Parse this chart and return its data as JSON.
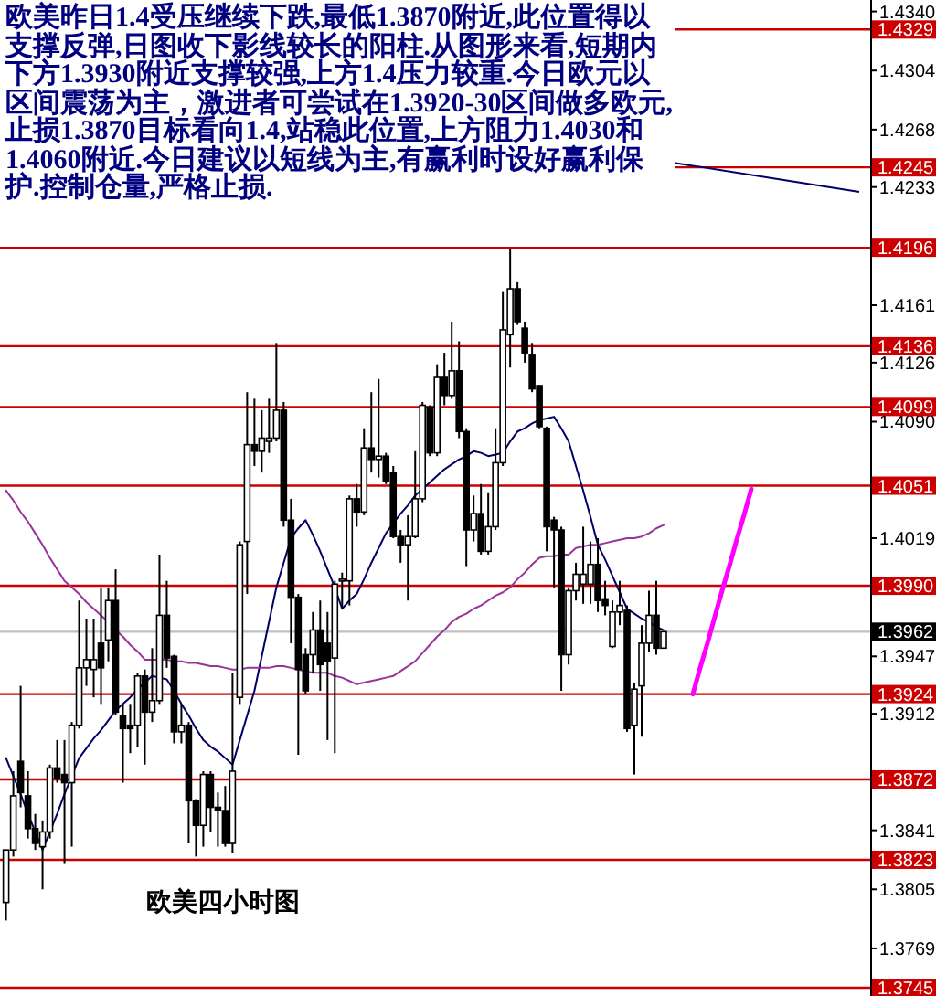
{
  "chart_data": {
    "type": "candlestick",
    "title": "欧美四小时图",
    "annotations": [
      "欧美昨日1.4受压继续下跌,最低1.3870附近,此位置得以支撑反弹,日图收下影线较长的阳柱.从图形来看,短期内下方1.3930附近支撑较强,上方1.4压力较重.今日欧元以区间震荡为主，激进者可尝试在1.3920-30区间做多欧元,止损1.3870目标看向1.4,站稳此位置,上方阻力1.4030和1.4060附近.今日建议以短线为主,有赢利时设好赢利保护.控制仓量,严格止损."
    ],
    "categories": [
      null,
      null,
      null,
      null,
      null,
      null,
      null,
      null,
      null,
      null,
      null,
      null,
      null,
      null,
      null,
      null,
      null,
      null,
      null,
      null,
      null,
      null,
      null,
      null,
      null,
      null,
      null,
      null,
      null,
      null,
      null,
      null,
      null,
      null,
      null,
      null,
      null,
      null,
      null,
      null,
      null,
      null,
      null,
      null,
      null,
      null,
      null,
      null,
      null,
      null,
      null,
      null,
      null,
      null,
      null,
      null,
      null,
      null,
      null,
      null,
      null,
      null,
      null,
      null,
      null,
      null,
      null,
      null,
      null,
      null,
      null,
      null,
      null,
      null,
      null,
      null,
      null,
      null,
      null,
      null,
      null,
      null,
      null,
      null,
      null,
      null,
      null,
      null,
      null,
      null,
      null,
      null,
      null,
      null,
      null,
      null,
      null,
      null,
      null,
      null,
      null,
      null,
      null,
      null,
      null,
      null,
      null,
      null,
      null,
      null,
      null,
      null,
      null,
      null,
      null,
      null,
      null,
      null,
      null
    ],
    "ohlc": [
      [
        1.3797,
        1.3829,
        1.3786,
        1.3829
      ],
      [
        1.3829,
        1.3877,
        1.3825,
        1.3862
      ],
      [
        1.3883,
        1.3929,
        1.3855,
        1.3864
      ],
      [
        1.3862,
        1.3877,
        1.3836,
        1.3842
      ],
      [
        1.3842,
        1.3851,
        1.3829,
        1.3833
      ],
      [
        1.3831,
        1.3847,
        1.3805,
        1.384
      ],
      [
        1.384,
        1.3881,
        1.3836,
        1.3879
      ],
      [
        1.3879,
        1.3896,
        1.387,
        1.3873
      ],
      [
        1.3875,
        1.3896,
        1.3821,
        1.387
      ],
      [
        1.387,
        1.3907,
        1.3831,
        1.3905
      ],
      [
        1.3905,
        1.3981,
        1.3903,
        1.394
      ],
      [
        1.394,
        1.397,
        1.3929,
        1.3945
      ],
      [
        1.3939,
        1.397,
        1.3922,
        1.3945
      ],
      [
        1.3955,
        1.3989,
        1.3918,
        1.394
      ],
      [
        1.3957,
        1.3989,
        1.3944,
        1.3981
      ],
      [
        1.3981,
        1.4,
        1.3911,
        1.3913
      ],
      [
        1.3911,
        1.3918,
        1.387,
        1.3903
      ],
      [
        1.3905,
        1.3918,
        1.3888,
        1.3903
      ],
      [
        1.3905,
        1.3937,
        1.3892,
        1.3935
      ],
      [
        1.3935,
        1.3939,
        1.3881,
        1.3913
      ],
      [
        1.3913,
        1.3952,
        1.3907,
        1.392
      ],
      [
        1.392,
        1.4009,
        1.3918,
        1.3972
      ],
      [
        1.3972,
        1.3993,
        1.394,
        1.3946
      ],
      [
        1.3947,
        1.3948,
        1.3894,
        1.3901
      ],
      [
        1.3901,
        1.3918,
        1.3894,
        1.3905
      ],
      [
        1.3905,
        1.3907,
        1.3833,
        1.3859
      ],
      [
        1.3859,
        1.386,
        1.3825,
        1.3844
      ],
      [
        1.3844,
        1.3877,
        1.3831,
        1.3875
      ],
      [
        1.3875,
        1.3877,
        1.384,
        1.3855
      ],
      [
        1.3855,
        1.3864,
        1.3831,
        1.3853
      ],
      [
        1.3853,
        1.3868,
        1.3831,
        1.3833
      ],
      [
        1.3833,
        1.3937,
        1.3827,
        1.3877
      ],
      [
        1.3922,
        1.4017,
        1.3918,
        1.4015
      ],
      [
        1.4017,
        1.4108,
        1.3985,
        1.4076
      ],
      [
        1.4076,
        1.4104,
        1.4063,
        1.4072
      ],
      [
        1.4072,
        1.4097,
        1.4059,
        1.408
      ],
      [
        1.4078,
        1.4104,
        1.4071,
        1.408
      ],
      [
        1.408,
        1.4138,
        1.4078,
        1.4097
      ],
      [
        1.4097,
        1.4102,
        1.4026,
        1.403
      ],
      [
        1.403,
        1.4043,
        1.3955,
        1.3983
      ],
      [
        1.3983,
        1.3985,
        1.3887,
        1.3939
      ],
      [
        1.3948,
        1.3952,
        1.3924,
        1.3926
      ],
      [
        1.3948,
        1.3974,
        1.3937,
        1.3963
      ],
      [
        1.3963,
        1.3981,
        1.3926,
        1.3942
      ],
      [
        1.3955,
        1.3974,
        1.3896,
        1.3944
      ],
      [
        1.3946,
        1.3993,
        1.3888,
        1.3991
      ],
      [
        1.3993,
        1.3998,
        1.3976,
        1.3994
      ],
      [
        1.3993,
        1.4045,
        1.3978,
        1.4043
      ],
      [
        1.4043,
        1.4052,
        1.4026,
        1.4035
      ],
      [
        1.4035,
        1.4086,
        1.4033,
        1.4074
      ],
      [
        1.4074,
        1.4108,
        1.4059,
        1.4067
      ],
      [
        1.4067,
        1.4116,
        1.4056,
        1.4069
      ],
      [
        1.4069,
        1.4071,
        1.4052,
        1.4054
      ],
      [
        1.4059,
        1.4063,
        1.4019,
        1.402
      ],
      [
        1.402,
        1.4024,
        1.4004,
        1.4015
      ],
      [
        1.4015,
        1.4033,
        1.3981,
        1.402
      ],
      [
        1.402,
        1.4072,
        1.4019,
        1.4043
      ],
      [
        1.4043,
        1.4102,
        1.4041,
        1.41
      ],
      [
        1.4099,
        1.41,
        1.4069,
        1.4071
      ],
      [
        1.4071,
        1.4125,
        1.4069,
        1.4117
      ],
      [
        1.4117,
        1.4132,
        1.41,
        1.4106
      ],
      [
        1.4106,
        1.4151,
        1.4104,
        1.4121
      ],
      [
        1.4121,
        1.4139,
        1.408,
        1.4084
      ],
      [
        1.4084,
        1.4086,
        1.4002,
        1.4024
      ],
      [
        1.4024,
        1.4045,
        1.4017,
        1.4034
      ],
      [
        1.4034,
        1.4052,
        1.4009,
        1.4011
      ],
      [
        1.4011,
        1.4047,
        1.4009,
        1.4026
      ],
      [
        1.4026,
        1.4086,
        1.4024,
        1.4065
      ],
      [
        1.4065,
        1.4169,
        1.4063,
        1.4146
      ],
      [
        1.4143,
        1.4195,
        1.4123,
        1.4171
      ],
      [
        1.4171,
        1.4175,
        1.4149,
        1.4151
      ],
      [
        1.4147,
        1.4151,
        1.4126,
        1.4132
      ],
      [
        1.4131,
        1.4138,
        1.4108,
        1.411
      ],
      [
        1.4112,
        1.4112,
        1.4086,
        1.4087
      ],
      [
        1.4086,
        1.4087,
        1.4011,
        1.4026
      ],
      [
        1.403,
        1.4032,
        1.3989,
        1.4024
      ],
      [
        1.4024,
        1.4026,
        1.3926,
        1.3948
      ],
      [
        1.3948,
        1.3989,
        1.3942,
        1.3987
      ],
      [
        1.3987,
        1.4004,
        1.3981,
        1.3997
      ],
      [
        1.3991,
        1.4026,
        1.3979,
        1.3997
      ],
      [
        1.3991,
        1.4017,
        1.3979,
        1.4003
      ],
      [
        1.4003,
        1.4019,
        1.3974,
        1.3981
      ],
      [
        1.3982,
        1.3993,
        1.3972,
        1.3978
      ],
      [
        1.3953,
        1.3981,
        1.3952,
        1.3974
      ],
      [
        1.3974,
        1.3993,
        1.3966,
        1.3978
      ],
      [
        1.3975,
        1.3978,
        1.3901,
        1.3903
      ],
      [
        1.3905,
        1.3931,
        1.3875,
        1.3927
      ],
      [
        1.3929,
        1.3966,
        1.3898,
        1.3955
      ],
      [
        1.3955,
        1.3987,
        1.395,
        1.3972
      ],
      [
        1.3972,
        1.3993,
        1.3948,
        1.3952
      ],
      [
        1.3952,
        1.3962,
        1.3952,
        1.3962
      ],
      null,
      null,
      null,
      null,
      null,
      null,
      null,
      null,
      null,
      null,
      null,
      null,
      null,
      null,
      null,
      null,
      null,
      null,
      null,
      null,
      null,
      null,
      null,
      null,
      null,
      null,
      null,
      null
    ],
    "series": [
      {
        "type": "line",
        "color": "#000066",
        "values": [
          1.3885,
          1.3874,
          1.3863,
          1.3851,
          1.384,
          1.3829,
          1.384,
          1.3851,
          1.3863,
          1.3874,
          1.3885,
          1.3891,
          1.3897,
          1.3902,
          1.3908,
          1.3914,
          1.3918,
          1.3922,
          1.3927,
          1.3931,
          1.3935,
          1.3934,
          1.3933,
          1.3926,
          1.3918,
          1.3911,
          1.3903,
          1.3896,
          1.3892,
          1.3889,
          1.3885,
          1.3881,
          1.3896,
          1.3911,
          1.3926,
          1.3947,
          1.3968,
          1.3989,
          1.4004,
          1.4019,
          1.4025,
          1.403,
          1.4021,
          1.4011,
          1.4,
          1.3989,
          1.3976,
          1.3981,
          1.3985,
          1.3994,
          1.4004,
          1.4013,
          1.4022,
          1.4028,
          1.4034,
          1.4039,
          1.4045,
          1.4049,
          1.4053,
          1.4057,
          1.4061,
          1.4064,
          1.4067,
          1.4069,
          1.4072,
          1.4071,
          1.4069,
          1.407,
          1.4071,
          1.4078,
          1.4084,
          1.4086,
          1.4089,
          1.4091,
          1.4092,
          1.4093,
          1.4086,
          1.4078,
          1.4063,
          1.4048,
          1.4032,
          1.4015,
          1.4006,
          1.3996,
          1.3986,
          1.3976,
          1.3973,
          1.397,
          1.3968,
          1.3965,
          1.3963,
          null,
          null,
          null,
          null,
          null,
          null,
          null,
          null,
          null,
          null,
          null,
          null,
          null,
          null,
          null,
          null,
          null,
          null,
          null,
          null,
          null,
          null,
          null,
          null,
          null,
          null,
          null,
          null
        ]
      },
      {
        "type": "line",
        "color": "#993399",
        "values": [
          1.4048,
          1.4042,
          1.4035,
          1.4029,
          1.4022,
          1.4015,
          1.4007,
          1.4,
          1.3993,
          1.3989,
          1.3985,
          1.398,
          1.3976,
          1.3972,
          1.3968,
          1.3963,
          1.3959,
          1.3954,
          1.395,
          1.3945,
          1.3945,
          1.3945,
          1.3945,
          1.3944,
          1.3944,
          1.3943,
          1.3943,
          1.3942,
          1.3941,
          1.3941,
          1.394,
          1.3939,
          1.3939,
          1.394,
          1.394,
          1.394,
          1.394,
          1.3941,
          1.3941,
          1.394,
          1.3939,
          1.3938,
          1.3937,
          1.3937,
          1.3937,
          1.3935,
          1.3934,
          1.3932,
          1.393,
          1.3931,
          1.3932,
          1.3933,
          1.3934,
          1.3935,
          1.3938,
          1.3941,
          1.3944,
          1.3949,
          1.3954,
          1.3959,
          1.3963,
          1.3968,
          1.3971,
          1.3973,
          1.3976,
          1.3978,
          1.3981,
          1.3984,
          1.3986,
          1.3989,
          1.3994,
          1.3998,
          1.4003,
          1.4007,
          1.4008,
          1.4008,
          1.4009,
          1.4009,
          1.4013,
          1.4014,
          1.4015,
          1.4015,
          1.4016,
          1.4017,
          1.4018,
          1.4019,
          1.4019,
          1.402,
          1.4022,
          1.4025,
          1.4027,
          null,
          null,
          null,
          null,
          null,
          null,
          null,
          null,
          null,
          null,
          null,
          null,
          null,
          null,
          null,
          null,
          null,
          null,
          null,
          null,
          null,
          null,
          null,
          null,
          null,
          null,
          null,
          null
        ]
      },
      {
        "type": "line",
        "color": "#ff00ff",
        "values": [
          null,
          null,
          null,
          null,
          null,
          null,
          null,
          null,
          null,
          null,
          null,
          null,
          null,
          null,
          null,
          null,
          null,
          null,
          null,
          null,
          null,
          null,
          null,
          null,
          null,
          null,
          null,
          null,
          null,
          null,
          null,
          null,
          null,
          null,
          null,
          null,
          null,
          null,
          null,
          null,
          null,
          null,
          null,
          null,
          null,
          null,
          null,
          null,
          null,
          null,
          null,
          null,
          null,
          null,
          null,
          null,
          null,
          null,
          null,
          null,
          null,
          null,
          null,
          null,
          null,
          null,
          null,
          null,
          null,
          null,
          null,
          null,
          null,
          null,
          null,
          null,
          null,
          null,
          null,
          null,
          null,
          null,
          null,
          null,
          null,
          null,
          null,
          null,
          null,
          null,
          null,
          null,
          null,
          null,
          1.3924,
          1.394,
          1.3955,
          1.3971,
          1.3987,
          1.4002,
          1.4018,
          1.4033,
          1.4049,
          null,
          null,
          null,
          null,
          null,
          null,
          null,
          null,
          null,
          null,
          null,
          null,
          null,
          null,
          null,
          null
        ]
      }
    ],
    "ylim": [
      1.374,
      1.4347
    ],
    "yticks": [
      {
        "value": 1.434,
        "label": "1.4340"
      },
      1.4304,
      1.4268,
      1.4233,
      1.4161,
      1.4126,
      {
        "value": 1.409,
        "label": "1.4090"
      },
      1.4019,
      1.3947,
      1.3912,
      1.3841,
      1.3805,
      1.3769
    ],
    "tick_labels": "y",
    "ref_lines": [
      {
        "axis": "y",
        "value": 1.4329,
        "label": "1.4329",
        "color": "#cc0000"
      },
      {
        "axis": "y",
        "value": 1.4245,
        "label": "1.4245",
        "color": "#cc0000"
      },
      {
        "axis": "y",
        "value": 1.4196,
        "label": "1.4196",
        "color": "#cc0000"
      },
      {
        "axis": "y",
        "value": 1.4136,
        "label": "1.4136",
        "color": "#cc0000"
      },
      {
        "axis": "y",
        "value": 1.4099,
        "label": "1.4099",
        "color": "#cc0000"
      },
      {
        "axis": "y",
        "value": 1.4051,
        "label": "1.4051",
        "color": "#cc0000"
      },
      {
        "axis": "y",
        "value": 1.399,
        "label": "1.3990",
        "color": "#cc0000"
      },
      {
        "axis": "y",
        "value": 1.3962,
        "label": "1.3962",
        "color": "#c0c0c0"
      },
      {
        "axis": "y",
        "value": 1.3924,
        "label": "1.3924",
        "color": "#cc0000"
      },
      {
        "axis": "y",
        "value": 1.3872,
        "label": "1.3872",
        "color": "#cc0000"
      },
      {
        "axis": "y",
        "value": 1.3823,
        "label": "1.3823",
        "color": "#cc0000"
      },
      {
        "axis": "y",
        "value": 1.3745,
        "label": "1.3745",
        "color": "#cc0000"
      }
    ]
  }
}
